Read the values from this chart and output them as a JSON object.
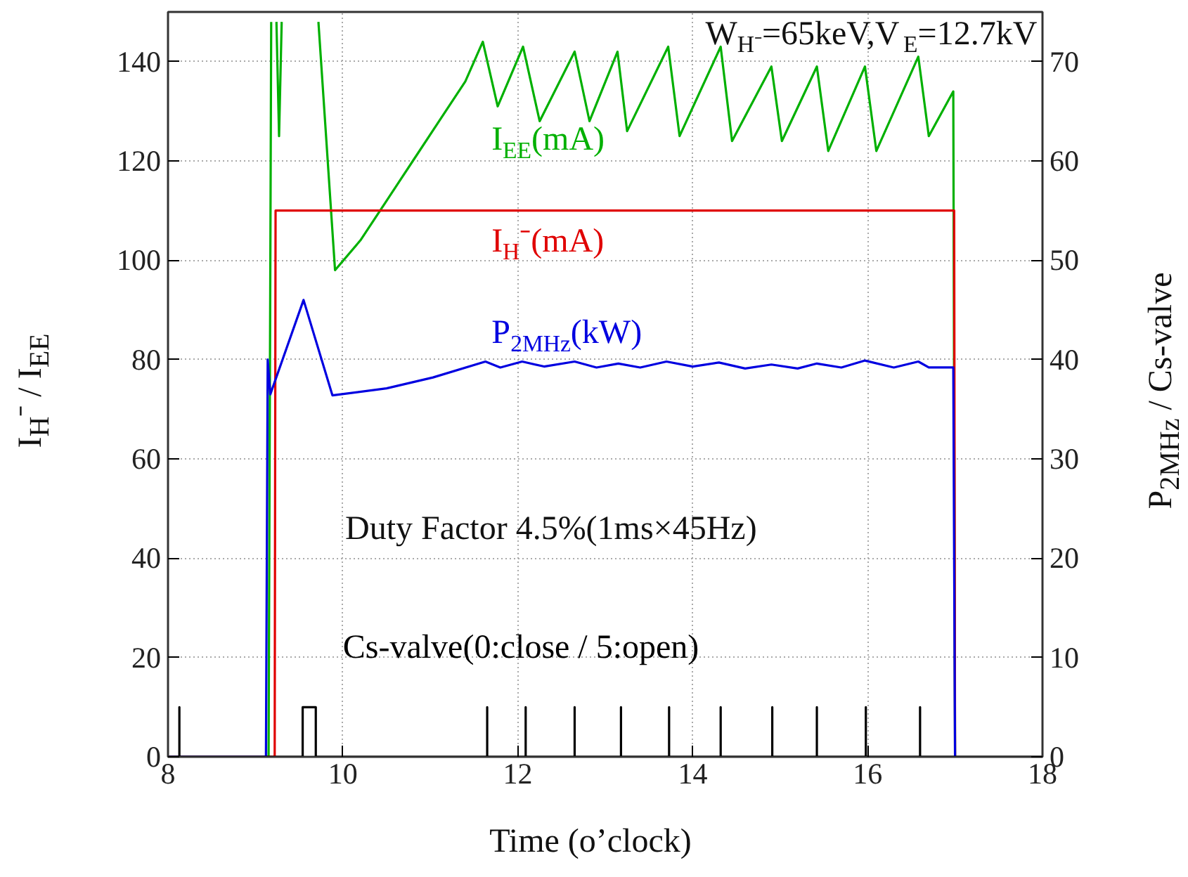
{
  "chart_data": {
    "type": "line",
    "xlabel": "Time (o’clock)",
    "ylabel": "I$_{H}$⁻ / I$_{EE}$",
    "y2label": "P$_{2MHz}$ / Cs-valve",
    "xlim": [
      8,
      18
    ],
    "xticks": [
      8,
      10,
      12,
      14,
      16,
      18
    ],
    "ylim": [
      0,
      150
    ],
    "yticks": [
      0,
      20,
      40,
      60,
      80,
      100,
      120,
      140
    ],
    "y2lim": [
      0,
      75
    ],
    "y2ticks": [
      0,
      10,
      20,
      30,
      40,
      50,
      60,
      70
    ],
    "grid": true,
    "marker": "none",
    "line_style": "solid",
    "annotations": [
      "W$_{H⁻}$=65keV,V$_{E}$=12.7kV",
      "Duty Factor 4.5%(1ms×45Hz)"
    ],
    "series": [
      {
        "name": "I$_{EE}$(mA)",
        "color": "#00b000",
        "x": [
          8,
          9.1,
          9.15,
          9.18,
          9.2,
          9.24,
          9.27,
          9.3,
          9.5,
          9.72,
          9.91,
          10.2,
          10.5,
          10.8,
          11.1,
          11.4,
          11.6,
          11.77,
          12.06,
          12.25,
          12.65,
          12.82,
          13.14,
          13.25,
          13.72,
          13.85,
          14.32,
          14.45,
          14.9,
          15.02,
          15.42,
          15.55,
          15.97,
          16.1,
          16.58,
          16.7,
          16.98,
          17.0
        ],
        "values": [
          0,
          0,
          0,
          148,
          null,
          148,
          125,
          148,
          null,
          148,
          98,
          104,
          112,
          120,
          128,
          136,
          144,
          131,
          143,
          128,
          142,
          128,
          142,
          126,
          143,
          125,
          143,
          124,
          139,
          124,
          139,
          122,
          139,
          122,
          141,
          125,
          134,
          0
        ]
      },
      {
        "name": "I$_{H}$⁻(mA)",
        "color": "#e00000",
        "x": [
          8,
          9.22,
          9.23,
          16.99,
          17.0
        ],
        "values": [
          0,
          0,
          110,
          110,
          0
        ]
      },
      {
        "name": "P$_{2MHz}$(kW)",
        "color": "#0000e0",
        "axis": "y2",
        "x": [
          8,
          9.12,
          9.14,
          9.17,
          9.55,
          9.88,
          10.5,
          11.03,
          11.63,
          11.8,
          12.05,
          12.3,
          12.65,
          12.9,
          13.15,
          13.4,
          13.7,
          14.0,
          14.3,
          14.6,
          14.9,
          15.2,
          15.42,
          15.7,
          15.97,
          16.3,
          16.58,
          16.7,
          16.98,
          17.0
        ],
        "values": [
          0,
          0,
          40,
          36.5,
          46,
          36.4,
          37.1,
          38.2,
          39.8,
          39.2,
          39.8,
          39.3,
          39.8,
          39.2,
          39.6,
          39.2,
          39.8,
          39.3,
          39.7,
          39.1,
          39.5,
          39.1,
          39.6,
          39.2,
          39.9,
          39.2,
          39.8,
          39.2,
          39.2,
          0
        ]
      },
      {
        "name": "Cs-valve(0:close / 5:open)",
        "color": "#000000",
        "axis": "y2",
        "x": [
          8,
          8.13,
          8.13,
          8.13,
          9.54,
          9.54,
          9.69,
          9.69,
          11.65,
          11.65,
          11.65,
          12.09,
          12.09,
          12.09,
          12.65,
          12.65,
          12.65,
          13.18,
          13.18,
          13.18,
          13.73,
          13.73,
          13.73,
          14.32,
          14.32,
          14.32,
          14.91,
          14.91,
          14.91,
          15.42,
          15.42,
          15.42,
          15.98,
          15.98,
          15.98,
          16.6,
          16.6,
          16.6,
          18
        ],
        "values": [
          0,
          0,
          5,
          0,
          0,
          5,
          5,
          0,
          0,
          5,
          0,
          0,
          5,
          0,
          0,
          5,
          0,
          0,
          5,
          0,
          0,
          5,
          0,
          0,
          5,
          0,
          0,
          5,
          0,
          0,
          5,
          0,
          0,
          5,
          0,
          0,
          5,
          0,
          0
        ]
      }
    ]
  }
}
